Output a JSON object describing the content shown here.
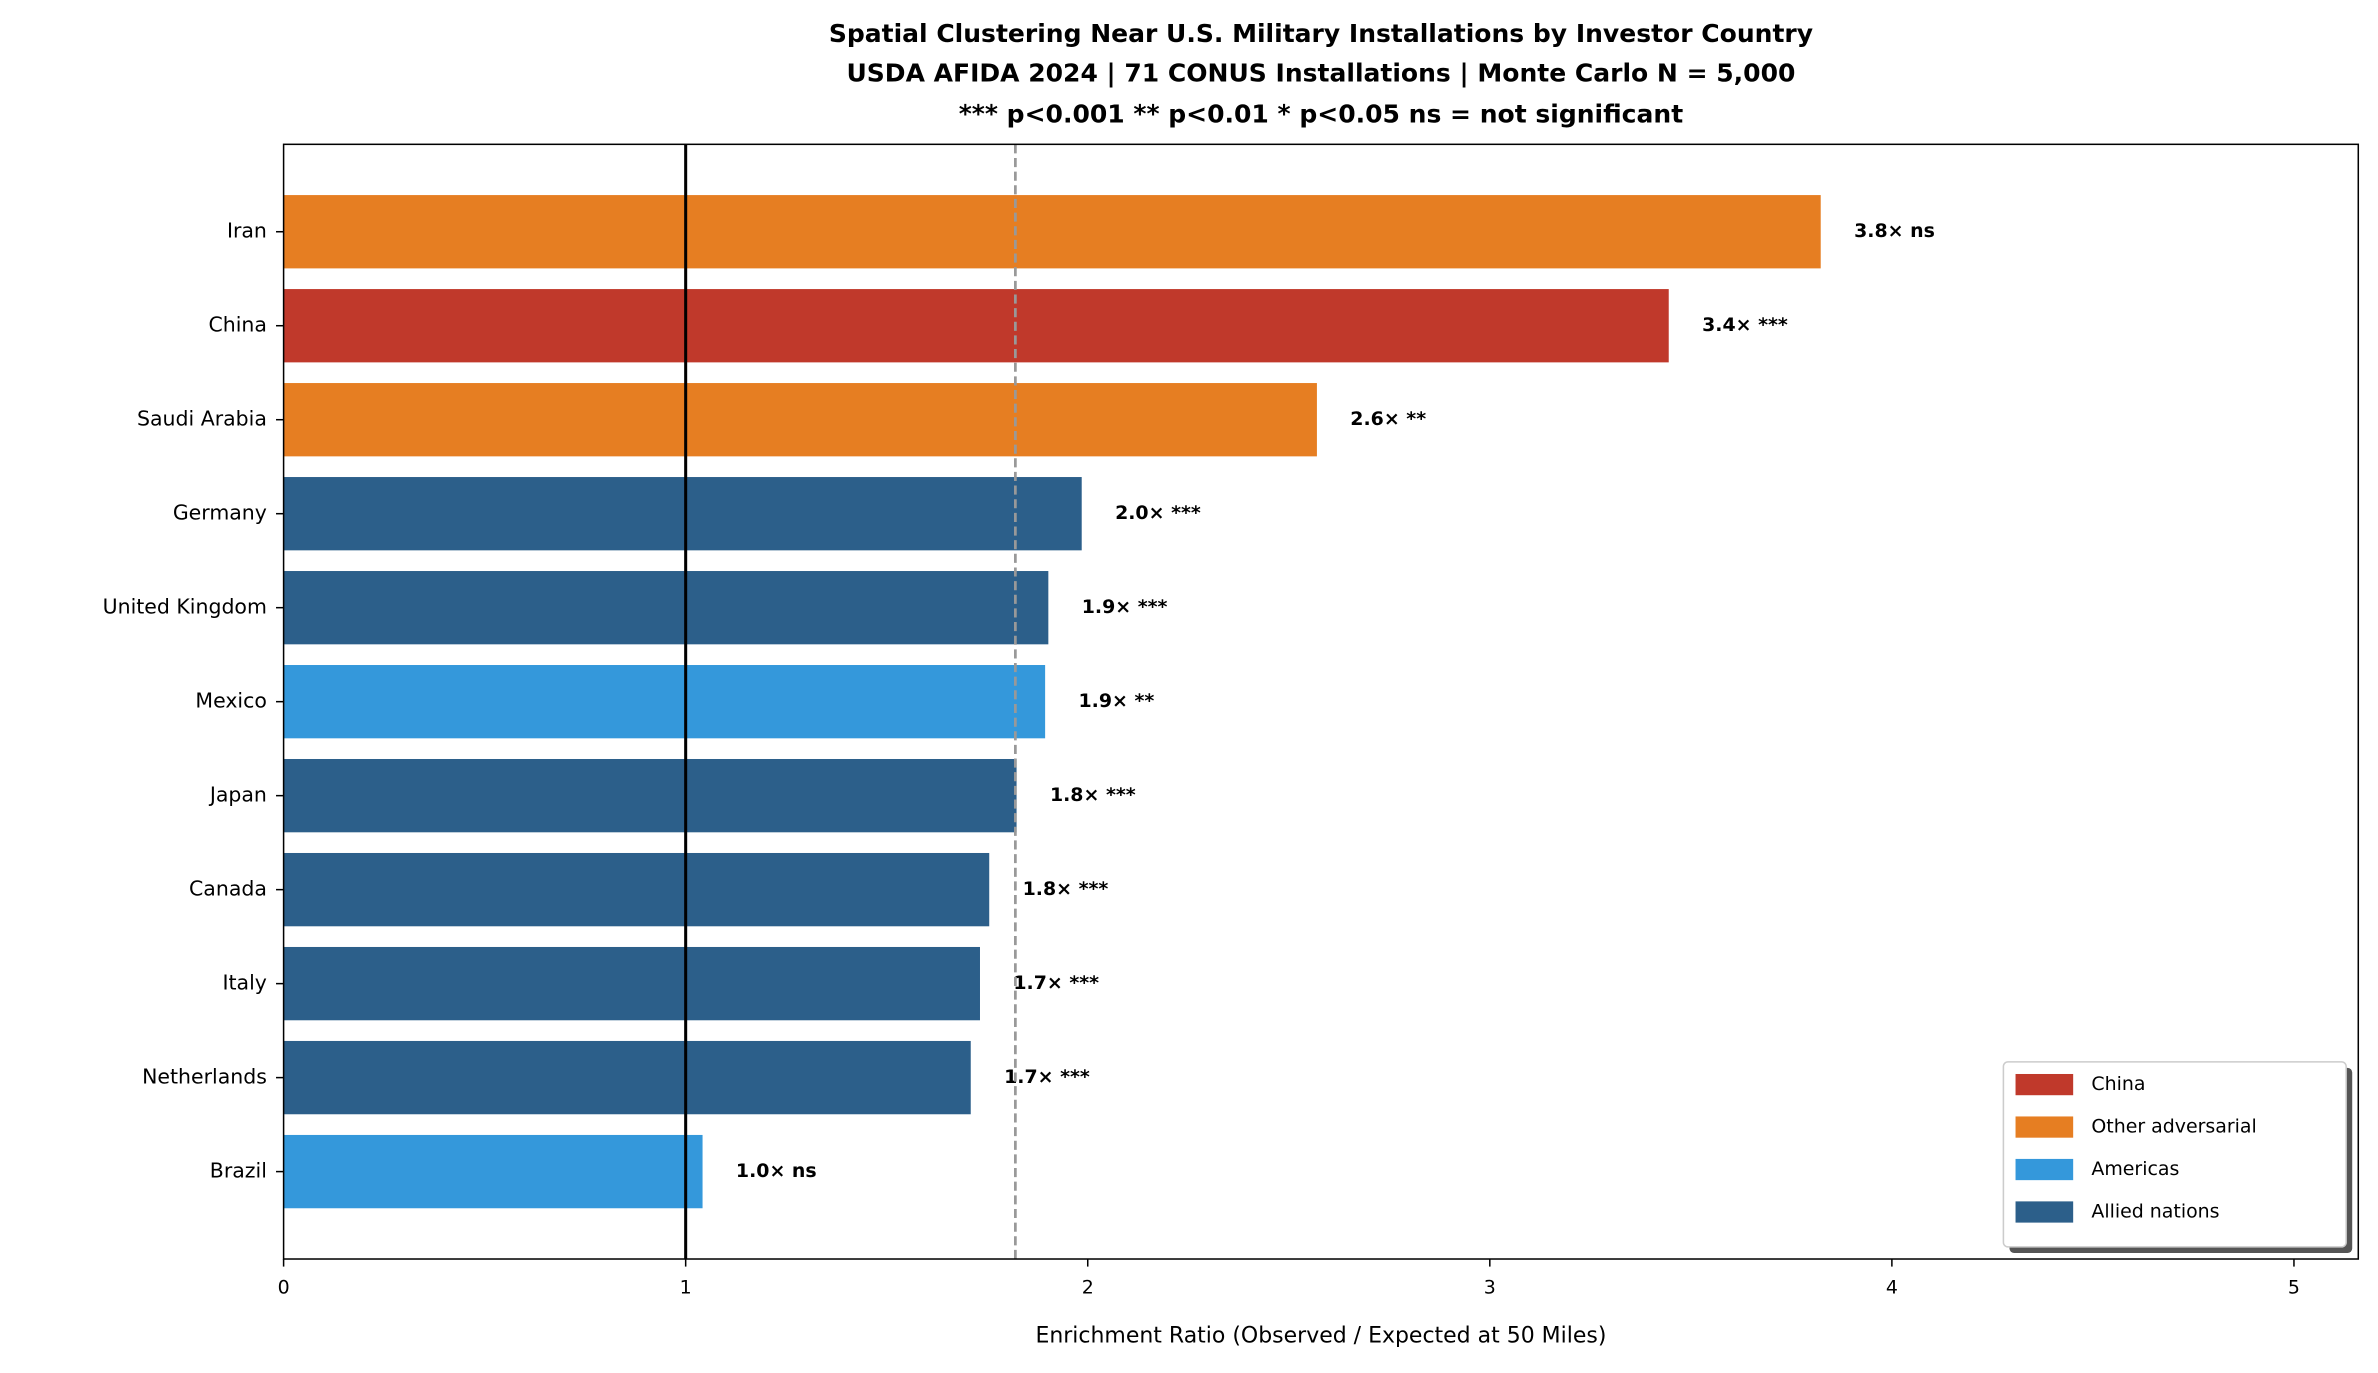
{
  "chart_data": {
    "type": "barh",
    "title_lines": [
      "Spatial Clustering Near U.S. Military Installations by Investor Country",
      "USDA AFIDA 2024 | 71 CONUS Installations | Monte Carlo N = 5,000",
      "*** p<0.001  ** p<0.01  * p<0.05  ns = not significant"
    ],
    "xlabel": "Enrichment Ratio (Observed / Expected at 50 Miles)",
    "categories": [
      "Iran",
      "China",
      "Saudi Arabia",
      "Germany",
      "United Kingdom",
      "Mexico",
      "Japan",
      "Canada",
      "Italy",
      "Netherlands",
      "Brazil"
    ],
    "values": [
      3.823,
      3.445,
      2.57,
      1.985,
      1.902,
      1.894,
      1.823,
      1.755,
      1.732,
      1.709,
      1.042
    ],
    "value_labels": [
      "3.8× ns",
      "3.4× ***",
      "2.6× **",
      "2.0× ***",
      "1.9× ***",
      "1.9× **",
      "1.8× ***",
      "1.8× ***",
      "1.7× ***",
      "1.7× ***",
      "1.0× ns"
    ],
    "colors": [
      "#e67e22",
      "#c0392b",
      "#e67e22",
      "#2c5f8a",
      "#2c5f8a",
      "#3498db",
      "#2c5f8a",
      "#2c5f8a",
      "#2c5f8a",
      "#2c5f8a",
      "#3498db"
    ],
    "xlim": [
      0,
      5.16
    ],
    "xticks": [
      0,
      1,
      2,
      3,
      4,
      5
    ],
    "reference_lines": [
      {
        "value": 1,
        "style": "solid",
        "color": "#000000"
      },
      {
        "value": 1.82,
        "style": "dashed",
        "color": "#999999"
      }
    ],
    "legend": {
      "position": "lower right",
      "items": [
        {
          "name": "China",
          "color": "#c0392b"
        },
        {
          "name": "Other adversarial",
          "color": "#e67e22"
        },
        {
          "name": "Americas",
          "color": "#3498db"
        },
        {
          "name": "Allied nations",
          "color": "#2c5f8a"
        }
      ]
    }
  }
}
